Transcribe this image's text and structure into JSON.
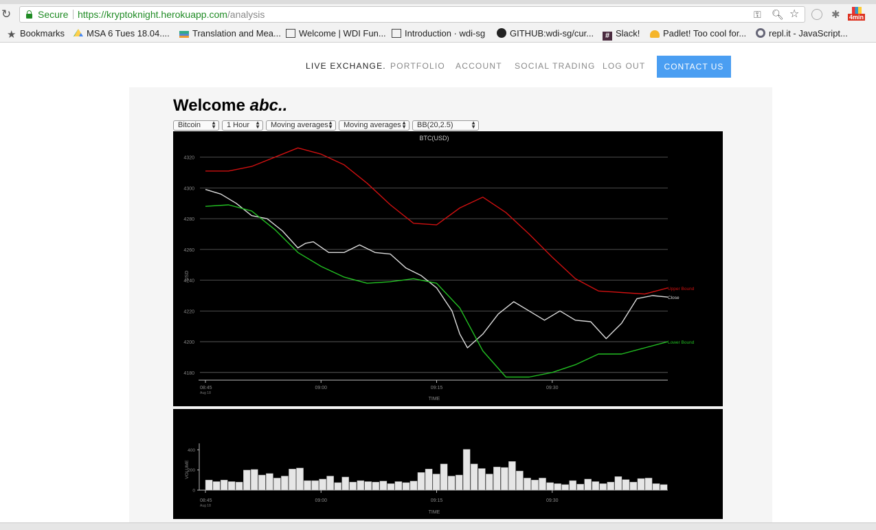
{
  "browser": {
    "secure_label": "Secure",
    "url_scheme": "https://",
    "url_host": "kryptoknight.herokuapp.com",
    "url_path": "/analysis",
    "extension_badge": "4min",
    "bookmarks": [
      {
        "label": "Bookmarks",
        "icon": "star-icon"
      },
      {
        "label": "MSA 6 Tues 18.04....",
        "icon": "drive-icon"
      },
      {
        "label": "Translation and Mea...",
        "icon": "books-icon"
      },
      {
        "label": "Welcome | WDI Fun...",
        "icon": "book-icon"
      },
      {
        "label": "Introduction · wdi-sg",
        "icon": "book-icon"
      },
      {
        "label": "GITHUB:wdi-sg/cur...",
        "icon": "github-icon"
      },
      {
        "label": "Slack!",
        "icon": "hash-icon"
      },
      {
        "label": "Padlet! Too cool for...",
        "icon": "padlet-icon"
      },
      {
        "label": "repl.it - JavaScript...",
        "icon": "replit-icon"
      }
    ]
  },
  "nav": {
    "live": "LIVE EXCHANGE.",
    "portfolio": "PORTFOLIO",
    "account": "ACCOUNT",
    "social": "SOCIAL TRADING",
    "logout": "LOG OUT",
    "contact": "CONTACT US"
  },
  "welcome": {
    "prefix": "Welcome ",
    "user": "abc.."
  },
  "controls": {
    "coin": "Bitcoin",
    "interval": "1 Hour",
    "indicator1": "Moving averages",
    "indicator2": "Moving averages",
    "bands": "BB(20,2.5)"
  },
  "colors": {
    "upper": "#d01010",
    "close": "#dddddd",
    "lower": "#22c022",
    "volume": "#e6e6e6"
  },
  "chart_data": [
    {
      "type": "line",
      "title": "BTC(USD)",
      "xlabel": "TIME",
      "ylabel": "USD",
      "ylim": [
        4175,
        4327
      ],
      "yticks": [
        4180,
        4200,
        4220,
        4240,
        4260,
        4280,
        4300,
        4320
      ],
      "xticks": [
        {
          "t": 0,
          "label": "08:45",
          "sublabel": "Aug 18"
        },
        {
          "t": 15,
          "label": "09:00"
        },
        {
          "t": 30,
          "label": "09:15"
        },
        {
          "t": 45,
          "label": "09:30"
        }
      ],
      "x_unit": "minutes after 08:45",
      "xlim": [
        0,
        60
      ],
      "grid": true,
      "series": [
        {
          "name": "Upper Bound",
          "x": [
            0,
            3,
            6,
            9,
            12,
            15,
            18,
            21,
            24,
            27,
            30,
            33,
            36,
            39,
            42,
            45,
            48,
            51,
            54,
            57,
            60
          ],
          "values": [
            4311,
            4311,
            4314,
            4320,
            4326,
            4322,
            4315,
            4303,
            4289,
            4277,
            4276,
            4287,
            4294,
            4284,
            4270,
            4255,
            4241,
            4233,
            4232,
            4231,
            4235
          ]
        },
        {
          "name": "Close",
          "x": [
            0,
            2,
            4,
            6,
            8,
            10,
            12,
            13,
            14,
            16,
            18,
            20,
            22,
            24,
            26,
            28,
            30,
            32,
            33,
            34,
            36,
            38,
            40,
            42,
            44,
            46,
            48,
            50,
            52,
            54,
            56,
            58,
            60
          ],
          "values": [
            4299,
            4296,
            4290,
            4282,
            4280,
            4272,
            4261,
            4264,
            4265,
            4258,
            4258,
            4263,
            4258,
            4257,
            4248,
            4243,
            4235,
            4220,
            4205,
            4196,
            4205,
            4218,
            4226,
            4220,
            4214,
            4220,
            4214,
            4213,
            4202,
            4212,
            4228,
            4230,
            4229
          ]
        },
        {
          "name": "Lower Bound",
          "x": [
            0,
            3,
            6,
            9,
            12,
            15,
            18,
            21,
            24,
            27,
            30,
            33,
            36,
            39,
            42,
            45,
            48,
            51,
            54,
            57,
            60
          ],
          "values": [
            4288,
            4289,
            4285,
            4273,
            4258,
            4249,
            4242,
            4238,
            4239,
            4241,
            4238,
            4222,
            4194,
            4177,
            4177,
            4180,
            4185,
            4192,
            4192,
            4196,
            4200
          ]
        }
      ]
    },
    {
      "type": "bar",
      "xlabel": "TIME",
      "ylabel": "VOLUME",
      "ylim": [
        0,
        450
      ],
      "yticks": [
        0,
        200,
        400
      ],
      "xticks": [
        {
          "t": 0,
          "label": "08:45",
          "sublabel": "Aug 18"
        },
        {
          "t": 15,
          "label": "09:00"
        },
        {
          "t": 30,
          "label": "09:15"
        },
        {
          "t": 45,
          "label": "09:30"
        }
      ],
      "xlim": [
        0,
        60
      ],
      "values": [
        100,
        85,
        100,
        85,
        80,
        200,
        205,
        150,
        165,
        120,
        140,
        210,
        220,
        95,
        95,
        110,
        140,
        75,
        130,
        80,
        95,
        85,
        80,
        90,
        65,
        85,
        75,
        90,
        175,
        210,
        160,
        260,
        140,
        150,
        405,
        260,
        215,
        160,
        230,
        225,
        285,
        190,
        120,
        100,
        120,
        75,
        65,
        55,
        95,
        60,
        110,
        85,
        65,
        80,
        135,
        105,
        80,
        115,
        120,
        65,
        55
      ]
    }
  ]
}
